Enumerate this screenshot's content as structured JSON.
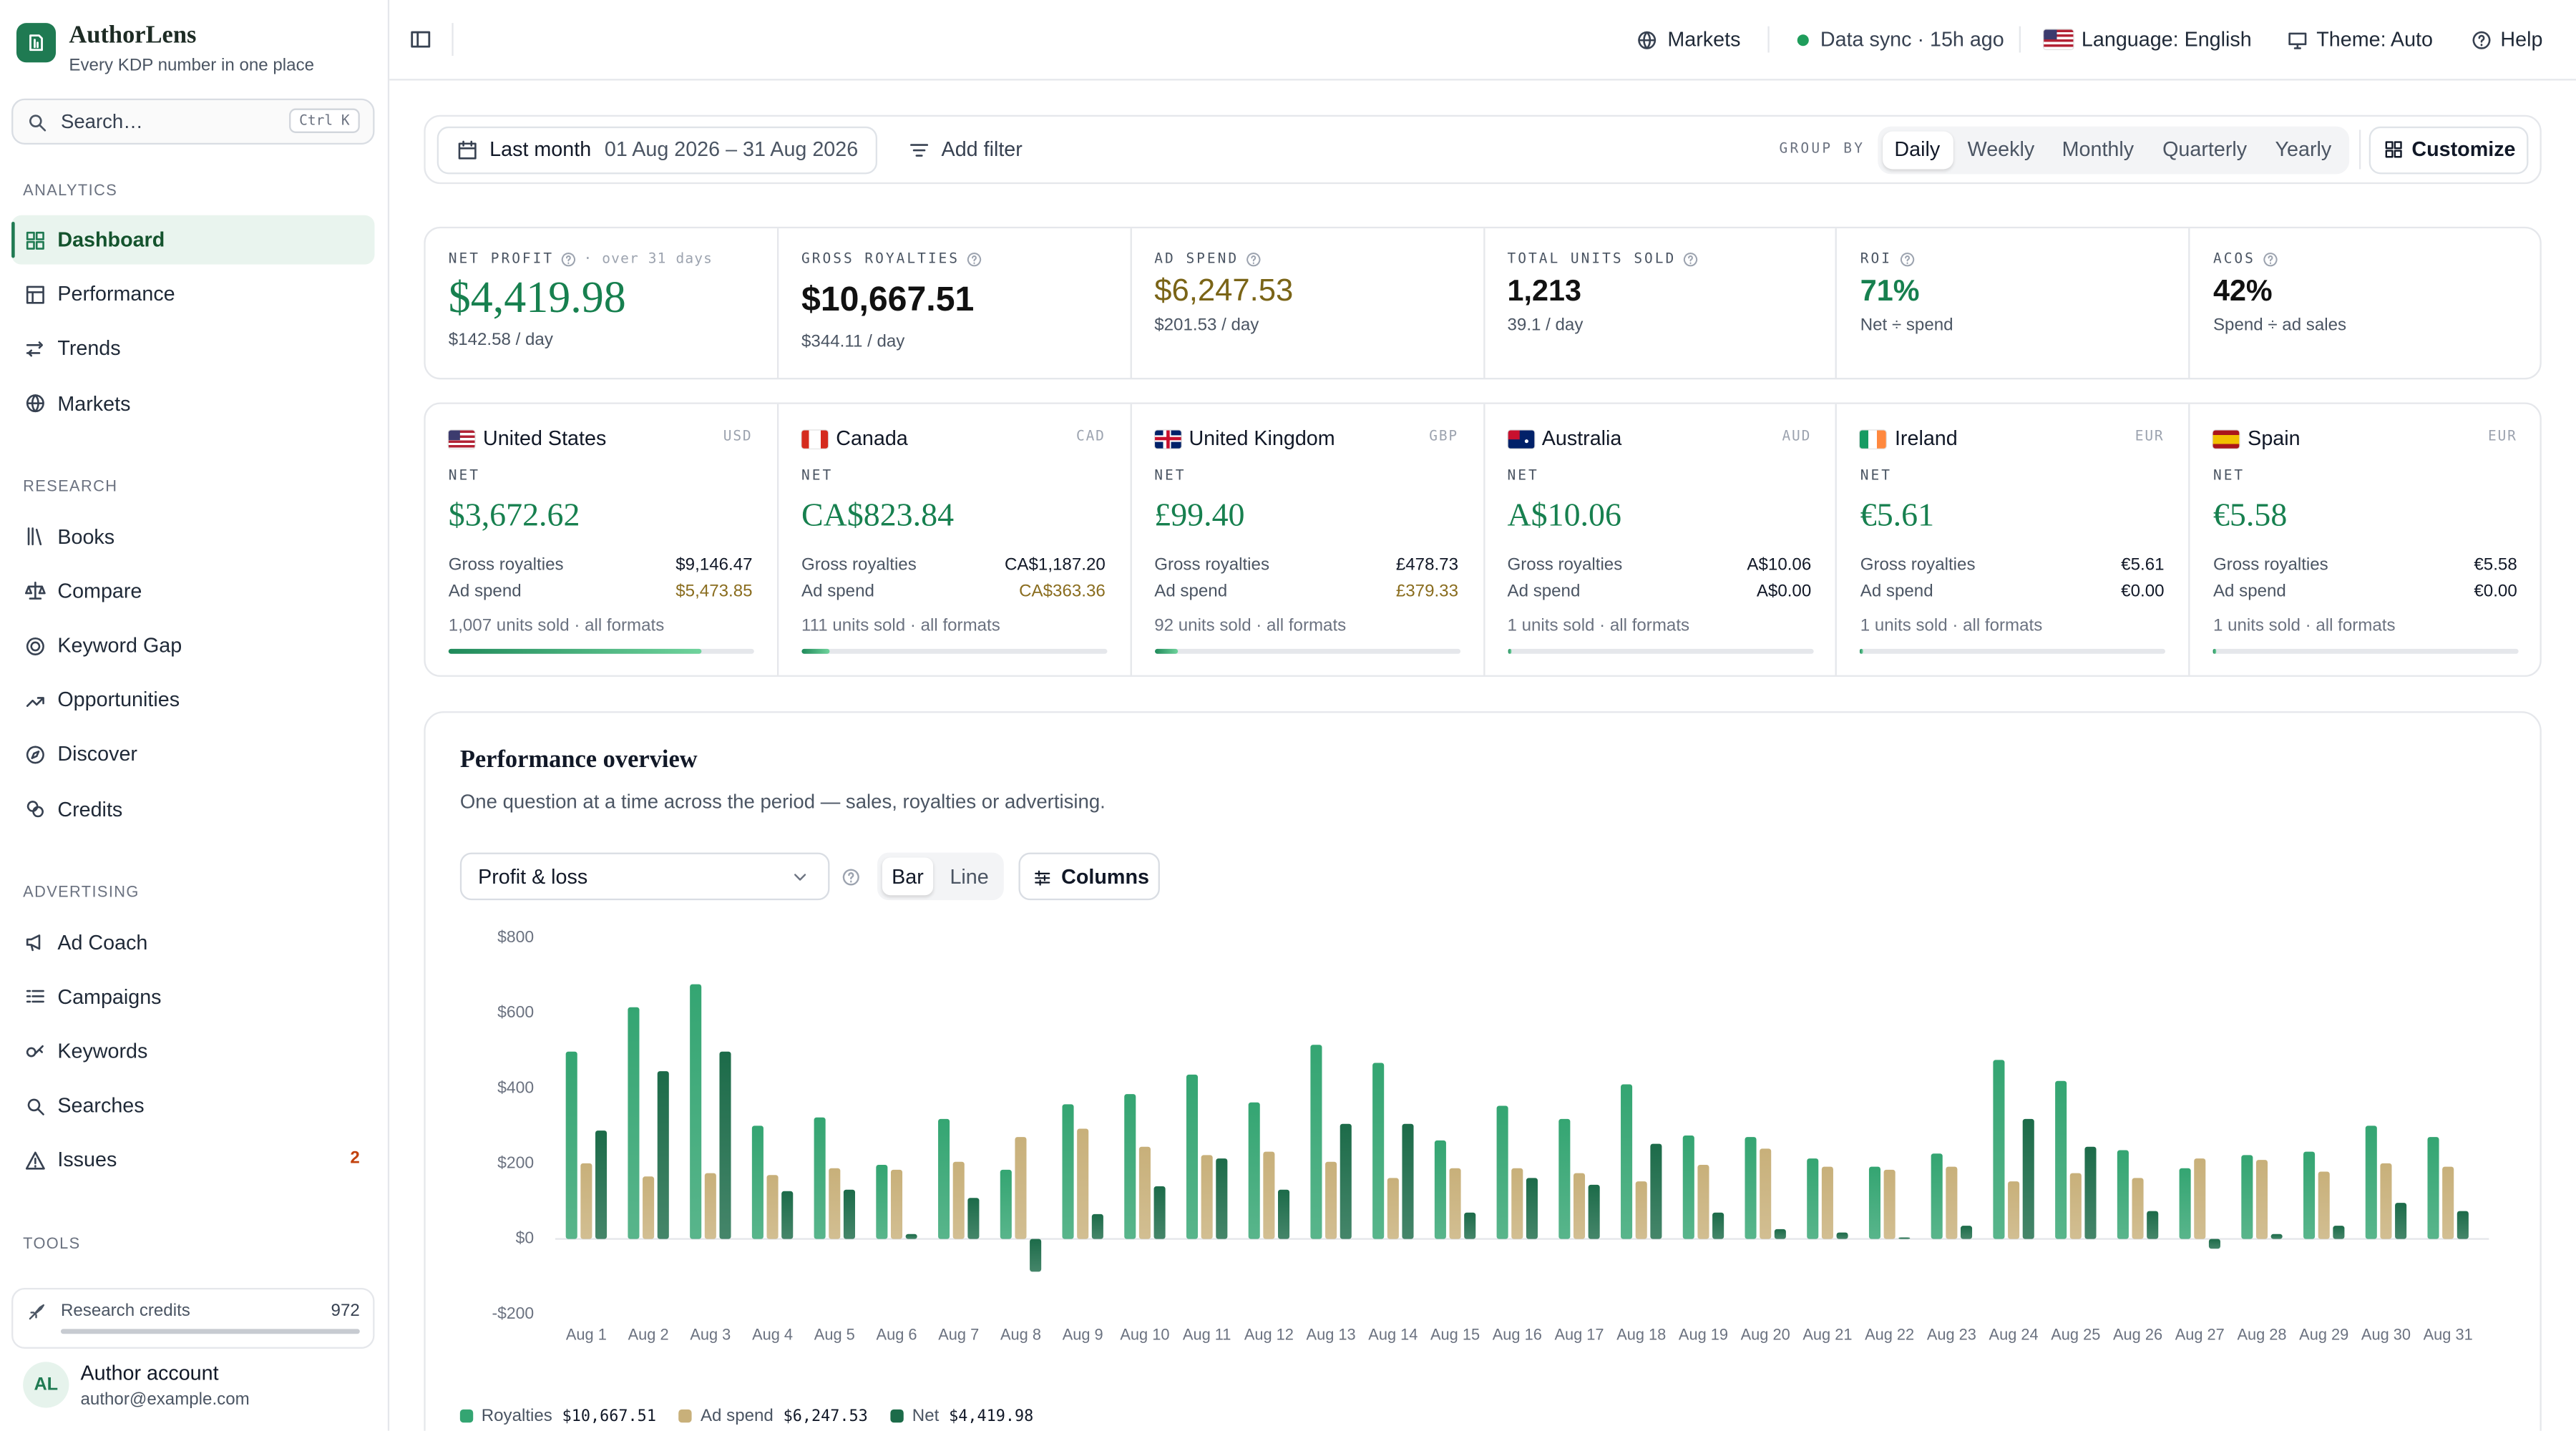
{
  "brand": {
    "name": "AuthorLens",
    "tagline": "Every KDP number in one place"
  },
  "search": {
    "placeholder": "Search…",
    "shortcut": "Ctrl K"
  },
  "nav": [
    {
      "title": "ANALYTICS",
      "items": [
        {
          "label": "Dashboard"
        },
        {
          "label": "Performance"
        },
        {
          "label": "Trends"
        },
        {
          "label": "Markets"
        }
      ]
    },
    {
      "title": "RESEARCH",
      "items": [
        {
          "label": "Books"
        },
        {
          "label": "Compare"
        },
        {
          "label": "Keyword Gap"
        },
        {
          "label": "Opportunities"
        },
        {
          "label": "Discover"
        },
        {
          "label": "Credits"
        }
      ]
    },
    {
      "title": "ADVERTISING",
      "items": [
        {
          "label": "Ad Coach"
        },
        {
          "label": "Campaigns"
        },
        {
          "label": "Keywords"
        },
        {
          "label": "Searches"
        },
        {
          "label": "Issues",
          "badge": 2
        }
      ]
    }
  ],
  "tools": {
    "title": "TOOLS",
    "credits_label": "Research credits",
    "credits": 972
  },
  "account": {
    "initials": "AL",
    "name": "Author account",
    "email": "author@example.com"
  },
  "topbar": {
    "markets": "Markets",
    "sync": "Data sync · 15h ago",
    "language": "Language: English",
    "theme": "Theme: Auto",
    "help": "Help"
  },
  "filters": {
    "range": "Last month",
    "dates": "01 Aug 2026 – 31 Aug 2026",
    "add": "Add filter",
    "group_by": "GROUP BY",
    "options": [
      "Daily",
      "Weekly",
      "Monthly",
      "Quarterly",
      "Yearly"
    ],
    "customize": "Customize"
  },
  "kpis": [
    {
      "label": "NET PROFIT",
      "note": "· over 31 days",
      "value": "$4,419.98",
      "sub": "$142.58 / day"
    },
    {
      "label": "GROSS ROYALTIES",
      "value": "$10,667.51",
      "sub": "$344.11 / day"
    },
    {
      "label": "AD SPEND",
      "value": "$6,247.53",
      "sub": "$201.53 / day"
    },
    {
      "label": "TOTAL UNITS SOLD",
      "value": "1,213",
      "sub": "39.1 / day"
    },
    {
      "label": "ROI",
      "value": "71%",
      "sub": "Net ÷ spend"
    },
    {
      "label": "ACOS",
      "value": "42%",
      "sub": "Spend ÷ ad sales"
    }
  ],
  "markets": [
    {
      "country": "United States",
      "currency": "USD",
      "net_label": "NET",
      "net": "$3,672.62",
      "gross_label": "Gross royalties",
      "gross": "$9,146.47",
      "ad_label": "Ad spend",
      "ad": "$5,473.85",
      "units": 1007,
      "units_label": "1,007 units sold · all formats"
    },
    {
      "country": "Canada",
      "currency": "CAD",
      "net_label": "NET",
      "net": "CA$823.84",
      "gross_label": "Gross royalties",
      "gross": "CA$1,187.20",
      "ad_label": "Ad spend",
      "ad": "CA$363.36",
      "units": 111,
      "units_label": "111 units sold · all formats"
    },
    {
      "country": "United Kingdom",
      "currency": "GBP",
      "net_label": "NET",
      "net": "£99.40",
      "gross_label": "Gross royalties",
      "gross": "£478.73",
      "ad_label": "Ad spend",
      "ad": "£379.33",
      "units": 92,
      "units_label": "92 units sold · all formats"
    },
    {
      "country": "Australia",
      "currency": "AUD",
      "net_label": "NET",
      "net": "A$10.06",
      "gross_label": "Gross royalties",
      "gross": "A$10.06",
      "ad_label": "Ad spend",
      "ad": "A$0.00",
      "units": 1,
      "units_label": "1 units sold · all formats"
    },
    {
      "country": "Ireland",
      "currency": "EUR",
      "net_label": "NET",
      "net": "€5.61",
      "gross_label": "Gross royalties",
      "gross": "€5.61",
      "ad_label": "Ad spend",
      "ad": "€0.00",
      "units": 1,
      "units_label": "1 units sold · all formats"
    },
    {
      "country": "Spain",
      "currency": "EUR",
      "net_label": "NET",
      "net": "€5.58",
      "gross_label": "Gross royalties",
      "gross": "€5.58",
      "ad_label": "Ad spend",
      "ad": "€0.00",
      "units": 1,
      "units_label": "1 units sold · all formats"
    }
  ],
  "performance": {
    "title": "Performance overview",
    "subtitle": "One question at a time across the period — sales, royalties or advertising.",
    "metric": "Profit & loss",
    "views": [
      "Bar",
      "Line"
    ],
    "columns": "Columns"
  },
  "chart_data": {
    "type": "bar",
    "categories": [
      "Aug 1",
      "Aug 2",
      "Aug 3",
      "Aug 4",
      "Aug 5",
      "Aug 6",
      "Aug 7",
      "Aug 8",
      "Aug 9",
      "Aug 10",
      "Aug 11",
      "Aug 12",
      "Aug 13",
      "Aug 14",
      "Aug 15",
      "Aug 16",
      "Aug 17",
      "Aug 18",
      "Aug 19",
      "Aug 20",
      "Aug 21",
      "Aug 22",
      "Aug 23",
      "Aug 24",
      "Aug 25",
      "Aug 26",
      "Aug 27",
      "Aug 28",
      "Aug 29",
      "Aug 30",
      "Aug 31"
    ],
    "series": [
      {
        "name": "Royalties",
        "total": "$10,667.51",
        "color": "#34a572",
        "values": [
          498,
          616,
          677,
          301,
          323,
          197,
          319,
          184,
          358,
          385,
          437,
          363,
          516,
          468,
          262,
          354,
          319,
          411,
          275,
          271,
          214,
          192,
          227,
          476,
          420,
          236,
          188,
          223,
          232,
          301,
          271
        ]
      },
      {
        "name": "Ad spend",
        "total": "$6,247.53",
        "color": "#c8b07a",
        "values": [
          201,
          166,
          175,
          170,
          188,
          184,
          205,
          271,
          293,
          245,
          223,
          232,
          205,
          162,
          188,
          188,
          175,
          153,
          197,
          240,
          192,
          184,
          192,
          153,
          175,
          162,
          214,
          210,
          179,
          201,
          192
        ]
      },
      {
        "name": "Net",
        "total": "$4,419.98",
        "color": "#1c6b49",
        "values": [
          288,
          446,
          498,
          127,
          131,
          13,
          109,
          -87,
          66,
          140,
          214,
          131,
          306,
          306,
          70,
          162,
          144,
          253,
          70,
          26,
          17,
          4,
          35,
          319,
          245,
          74,
          -26,
          13,
          35,
          96,
          74
        ]
      }
    ],
    "ylim": [
      -200,
      800
    ],
    "yticks": [
      {
        "value": -200,
        "label": "-$200"
      },
      {
        "value": 0,
        "label": "$0"
      },
      {
        "value": 200,
        "label": "$200"
      },
      {
        "value": 400,
        "label": "$400"
      },
      {
        "value": 600,
        "label": "$600"
      },
      {
        "value": 800,
        "label": "$800"
      }
    ],
    "grid": false
  }
}
